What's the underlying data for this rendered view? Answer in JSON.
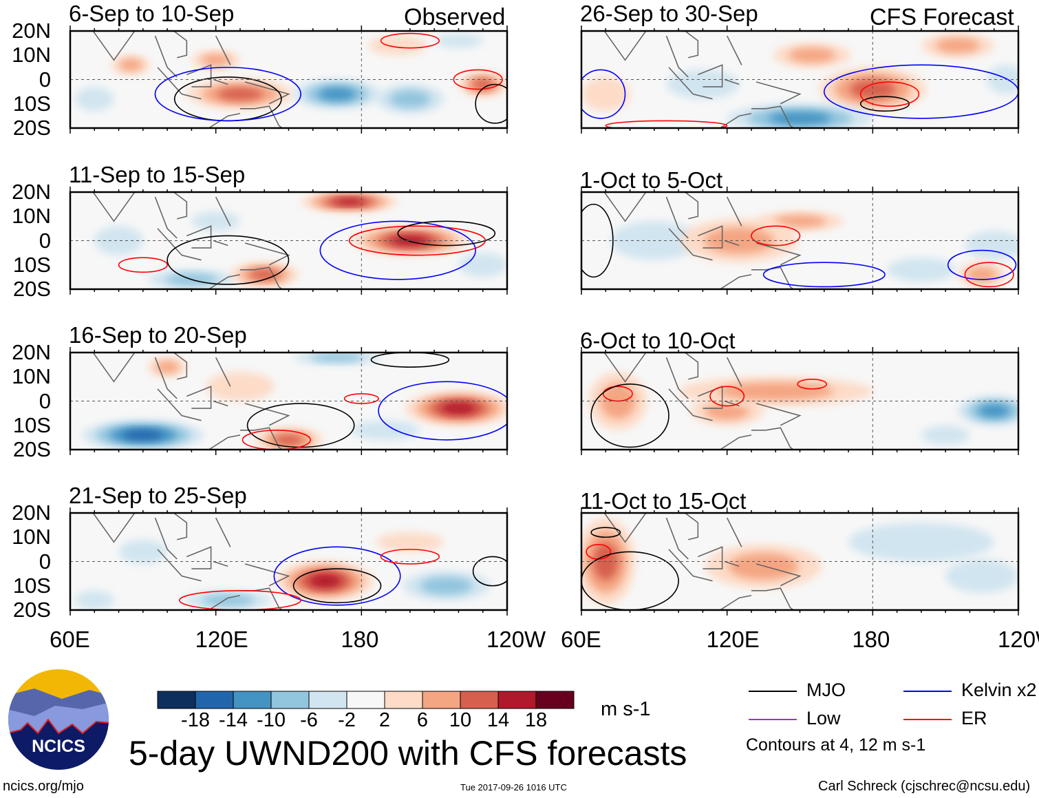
{
  "headers": {
    "left": "Observed",
    "right": "CFS Forecast"
  },
  "lat_labels": [
    "20N",
    "10N",
    "0",
    "10S",
    "20S"
  ],
  "lon_labels": [
    "60E",
    "120E",
    "180",
    "120W"
  ],
  "panels": [
    {
      "title": "6-Sep to 10-Sep",
      "blobs": [
        [
          130,
          -6,
          22,
          6,
          12
        ],
        [
          120,
          8,
          10,
          4,
          5
        ],
        [
          85,
          6,
          8,
          4,
          5
        ],
        [
          170,
          -6,
          18,
          6,
          -12
        ],
        [
          200,
          -8,
          14,
          6,
          -6
        ],
        [
          230,
          -2,
          10,
          5,
          12
        ],
        [
          195,
          14,
          12,
          4,
          3
        ],
        [
          220,
          16,
          10,
          3,
          -4
        ],
        [
          70,
          -8,
          8,
          5,
          -4
        ]
      ],
      "contours": [
        [
          "mjo",
          125,
          -8,
          22,
          9
        ],
        [
          "kelvin",
          125,
          -6,
          30,
          11
        ],
        [
          "er",
          200,
          16,
          12,
          3
        ],
        [
          "er",
          228,
          0,
          10,
          4
        ],
        [
          "mjo",
          235,
          -10,
          8,
          8
        ]
      ]
    },
    {
      "title": "11-Sep to 15-Sep",
      "blobs": [
        [
          175,
          16,
          20,
          4,
          14
        ],
        [
          200,
          0,
          24,
          6,
          16
        ],
        [
          140,
          -14,
          14,
          5,
          10
        ],
        [
          80,
          0,
          10,
          6,
          -4
        ],
        [
          120,
          8,
          10,
          4,
          -4
        ],
        [
          110,
          -16,
          18,
          4,
          -6
        ],
        [
          230,
          -10,
          10,
          5,
          -4
        ]
      ],
      "contours": [
        [
          "mjo",
          125,
          -8,
          25,
          10
        ],
        [
          "er",
          203,
          0,
          28,
          6
        ],
        [
          "kelvin",
          195,
          -4,
          32,
          12
        ],
        [
          "er",
          90,
          -10,
          10,
          3
        ],
        [
          "mjo",
          215,
          3,
          20,
          5
        ]
      ]
    },
    {
      "title": "16-Sep to 20-Sep",
      "blobs": [
        [
          90,
          -14,
          25,
          6,
          -14
        ],
        [
          150,
          -16,
          14,
          5,
          12
        ],
        [
          220,
          -3,
          22,
          7,
          16
        ],
        [
          170,
          18,
          18,
          3,
          -8
        ],
        [
          130,
          6,
          14,
          6,
          4
        ],
        [
          190,
          -12,
          14,
          4,
          -4
        ],
        [
          100,
          14,
          8,
          4,
          6
        ]
      ],
      "contours": [
        [
          "mjo",
          155,
          -10,
          22,
          9
        ],
        [
          "kelvin",
          215,
          -4,
          28,
          12
        ],
        [
          "er",
          145,
          -16,
          14,
          4
        ],
        [
          "er",
          180,
          1,
          7,
          2
        ],
        [
          "mjo",
          200,
          17,
          16,
          3
        ]
      ]
    },
    {
      "title": "21-Sep to 25-Sep",
      "blobs": [
        [
          165,
          -8,
          20,
          8,
          14
        ],
        [
          215,
          -10,
          18,
          6,
          -8
        ],
        [
          90,
          4,
          10,
          5,
          -4
        ],
        [
          125,
          -16,
          18,
          4,
          -6
        ],
        [
          200,
          8,
          14,
          4,
          4
        ],
        [
          70,
          -16,
          8,
          4,
          -4
        ]
      ],
      "contours": [
        [
          "mjo",
          170,
          -10,
          18,
          7
        ],
        [
          "kelvin",
          170,
          -6,
          26,
          12
        ],
        [
          "er",
          200,
          2,
          12,
          3
        ],
        [
          "er",
          130,
          -16,
          25,
          4
        ],
        [
          "mjo",
          234,
          -4,
          8,
          6
        ]
      ]
    },
    {
      "title": "26-Sep to 30-Sep",
      "blobs": [
        [
          180,
          -4,
          22,
          9,
          12
        ],
        [
          150,
          -16,
          30,
          6,
          -12
        ],
        [
          155,
          10,
          16,
          5,
          8
        ],
        [
          215,
          14,
          15,
          5,
          6
        ],
        [
          110,
          -2,
          15,
          6,
          -4
        ],
        [
          235,
          0,
          8,
          6,
          -4
        ],
        [
          70,
          -6,
          10,
          7,
          3
        ]
      ],
      "contours": [
        [
          "kelvin",
          200,
          -5,
          40,
          11
        ],
        [
          "mjo",
          185,
          -10,
          10,
          3
        ],
        [
          "er",
          187,
          -6,
          12,
          5
        ],
        [
          "er",
          95,
          -19,
          25,
          2
        ],
        [
          "kelvin",
          68,
          -6,
          10,
          10
        ]
      ]
    },
    {
      "title": "1-Oct to 5-Oct",
      "blobs": [
        [
          125,
          0,
          24,
          9,
          7
        ],
        [
          150,
          8,
          18,
          4,
          5
        ],
        [
          90,
          0,
          18,
          8,
          -3
        ],
        [
          230,
          -2,
          12,
          6,
          -4
        ],
        [
          225,
          -14,
          10,
          5,
          8
        ],
        [
          200,
          -12,
          14,
          5,
          -3
        ]
      ],
      "contours": [
        [
          "er",
          140,
          2,
          10,
          4
        ],
        [
          "kelvin",
          225,
          -10,
          14,
          6
        ],
        [
          "er",
          228,
          -14,
          10,
          5
        ],
        [
          "mjo",
          65,
          0,
          8,
          15
        ],
        [
          "kelvin",
          160,
          -14,
          25,
          5
        ]
      ]
    },
    {
      "title": "6-Oct to 10-Oct",
      "blobs": [
        [
          140,
          4,
          40,
          6,
          6
        ],
        [
          75,
          0,
          12,
          12,
          6
        ],
        [
          120,
          -4,
          15,
          6,
          5
        ],
        [
          230,
          -4,
          15,
          6,
          -10
        ],
        [
          210,
          -14,
          10,
          4,
          -4
        ]
      ],
      "contours": [
        [
          "er",
          120,
          2,
          7,
          4
        ],
        [
          "er",
          155,
          7,
          6,
          2
        ],
        [
          "er",
          75,
          3,
          6,
          3
        ],
        [
          "mjo",
          80,
          -6,
          16,
          13
        ]
      ]
    },
    {
      "title": "11-Oct to 15-Oct",
      "blobs": [
        [
          70,
          0,
          12,
          18,
          10
        ],
        [
          135,
          -2,
          24,
          9,
          5
        ],
        [
          200,
          8,
          30,
          8,
          -2
        ],
        [
          225,
          -6,
          15,
          7,
          -3
        ]
      ],
      "contours": [
        [
          "er",
          67,
          4,
          5,
          3
        ],
        [
          "mjo",
          70,
          12,
          6,
          2
        ],
        [
          "mjo",
          80,
          -8,
          20,
          12
        ]
      ]
    }
  ],
  "colorbar": {
    "colors": [
      "#0c2f5e",
      "#2166ac",
      "#4393c3",
      "#92c5de",
      "#d1e5f0",
      "#f7f7f7",
      "#fddbc7",
      "#f4a582",
      "#d6604d",
      "#b2182b",
      "#67001f"
    ],
    "ticks": [
      "-18",
      "-14",
      "-10",
      "-6",
      "-2",
      "2",
      "6",
      "10",
      "14",
      "18"
    ],
    "units": "m s-1"
  },
  "legend": {
    "items": [
      {
        "key": "mjo",
        "label": "MJO",
        "color": "#000000"
      },
      {
        "key": "kelvin",
        "label": "Kelvin x2",
        "color": "#0000ff"
      },
      {
        "key": "low",
        "label": "Low",
        "color": "#9933cc"
      },
      {
        "key": "er",
        "label": "ER",
        "color": "#ff0000"
      }
    ],
    "note": "Contours at 4, 12 m s-1"
  },
  "title": "5-day UWND200 with CFS forecasts",
  "logo_text": "NCICS",
  "footer": {
    "url": "ncics.org/mjo",
    "timestamp": "Tue 2017-09-26 1016 UTC",
    "author": "Carl Schreck (cjschrec@ncsu.edu)"
  }
}
